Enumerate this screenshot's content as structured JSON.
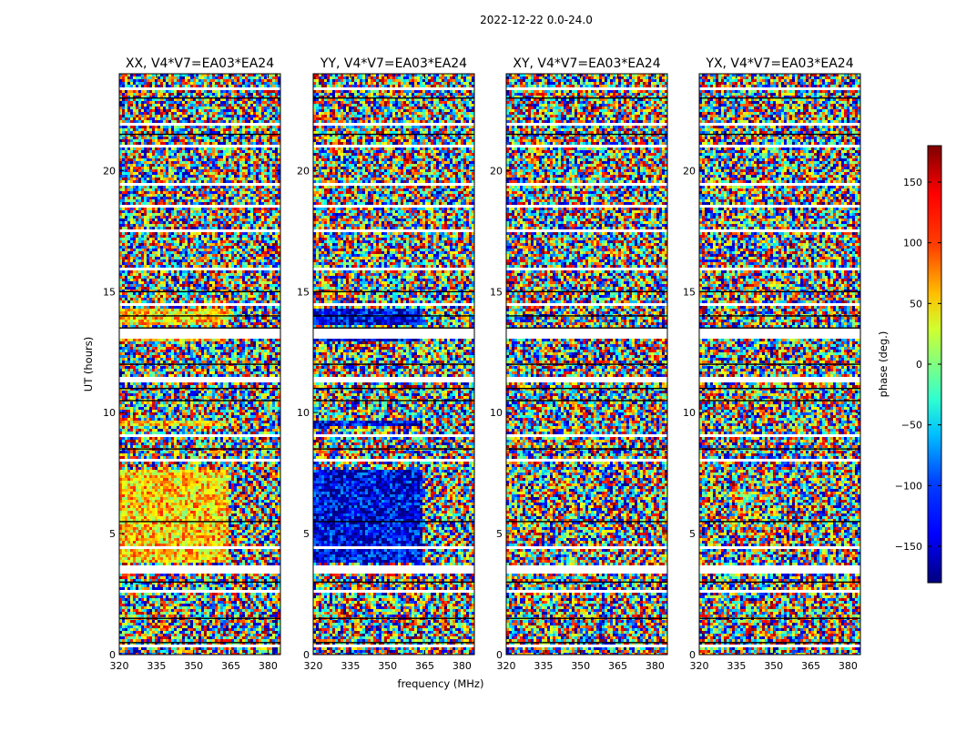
{
  "figure_title": "2022-12-22 0.0-24.0",
  "chart_data": {
    "type": "heatmap",
    "suptitle": "2022-12-22 0.0-24.0",
    "xlabel": "frequency (MHz)",
    "ylabel": "UT (hours)",
    "xlim": [
      320,
      385
    ],
    "ylim": [
      0,
      24
    ],
    "xticks": [
      320,
      335,
      350,
      365,
      380
    ],
    "yticks": [
      0,
      5,
      10,
      15,
      20
    ],
    "colorbar": {
      "label": "phase (deg.)",
      "range": [
        -180,
        180
      ],
      "ticks": [
        150,
        100,
        50,
        0,
        -50,
        -100,
        -150
      ],
      "colormap": "jet"
    },
    "panels": [
      {
        "title": "XX, V4*V7=EA03*EA24",
        "dominant_phase_deg": 60,
        "coherent_hours": [
          [
            3.8,
            7.6
          ],
          [
            9.4,
            9.7
          ],
          [
            12.9,
            13.1
          ],
          [
            13.6,
            14.3
          ]
        ],
        "band_edge_mhz": 363
      },
      {
        "title": "YY, V4*V7=EA03*EA24",
        "dominant_phase_deg": -140,
        "coherent_hours": [
          [
            3.8,
            7.6
          ],
          [
            9.4,
            9.7
          ],
          [
            12.9,
            13.1
          ],
          [
            13.6,
            14.3
          ]
        ],
        "band_edge_mhz": 363
      },
      {
        "title": "XY, V4*V7=EA03*EA24",
        "dominant_phase_deg": null,
        "coherent_hours": [],
        "band_edge_mhz": 363
      },
      {
        "title": "YX, V4*V7=EA03*EA24",
        "dominant_phase_deg": null,
        "coherent_hours": [],
        "band_edge_mhz": 363
      }
    ],
    "flagged_hours": [
      [
        0.35,
        0.45
      ],
      [
        2.55,
        2.7
      ],
      [
        3.4,
        3.7
      ],
      [
        4.4,
        4.5
      ],
      [
        8.0,
        8.1
      ],
      [
        9.0,
        9.1
      ],
      [
        11.3,
        11.5
      ],
      [
        13.1,
        13.5
      ],
      [
        14.4,
        14.5
      ],
      [
        15.9,
        16.0
      ],
      [
        17.5,
        17.6
      ],
      [
        18.5,
        18.6
      ],
      [
        19.4,
        19.5
      ],
      [
        20.9,
        21.1
      ],
      [
        21.9,
        22.0
      ],
      [
        23.3,
        23.4
      ]
    ],
    "dark_lines_hours": [
      0.5,
      1.5,
      3.0,
      5.5,
      8.5,
      10.5,
      11.0,
      12.0,
      13.5,
      14.0,
      15.0,
      21.5,
      23.0
    ]
  }
}
